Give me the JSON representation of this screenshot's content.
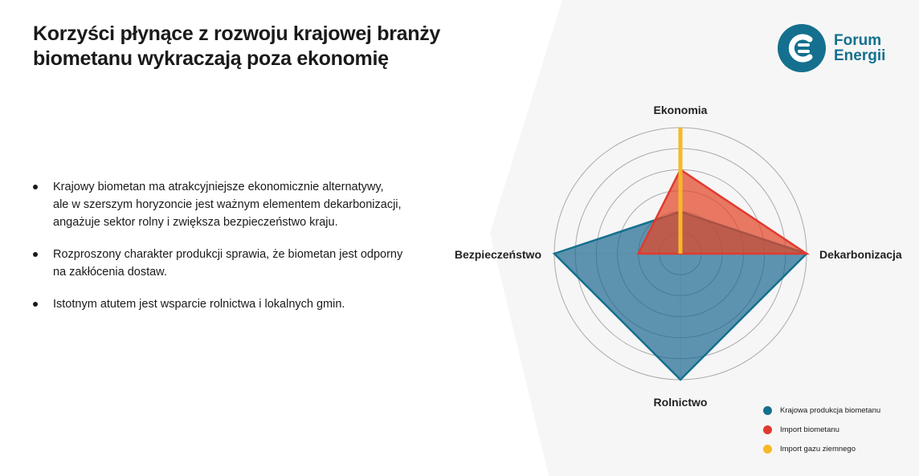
{
  "header": {
    "title_line1": "Korzyści płynące z rozwoju krajowej branży",
    "title_line2": "biometanu wykraczają poza ekonomię"
  },
  "bullets": [
    {
      "lines": [
        "Krajowy biometan ma  atrakcyjniejsze ekonomicznie alternatywy,",
        "ale w szerszym horyzoncie jest ważnym elementem dekarbonizacji,",
        "angażuje sektor rolny i zwiększa bezpieczeństwo kraju."
      ]
    },
    {
      "lines": [
        "Rozproszony charakter produkcji sprawia, że biometan jest odporny",
        "na zakłócenia dostaw."
      ]
    },
    {
      "lines": [
        "Istotnym atutem jest wsparcie rolnictwa i lokalnych gmin."
      ]
    }
  ],
  "logo": {
    "line1": "Forum",
    "line2": "Energii",
    "color": "#14708e",
    "accent": "#e03a2e"
  },
  "chart_data": {
    "type": "radar",
    "axes": [
      "Ekonomia",
      "Dekarbonizacja",
      "Rolnictwo",
      "Bezpieczeństwo"
    ],
    "range": [
      0,
      6
    ],
    "rings": 6,
    "legend_position": "bottom-right",
    "series": [
      {
        "name": "Krajowa produkcja biometanu",
        "values": [
          2,
          6,
          6,
          6
        ],
        "color": "#14708e"
      },
      {
        "name": "Import biometanu",
        "values": [
          4,
          6,
          0,
          2
        ],
        "color": "#e03a2e"
      },
      {
        "name": "Import gazu ziemnego",
        "values": [
          6,
          0,
          0,
          0
        ],
        "color": "#f7b825"
      }
    ]
  }
}
